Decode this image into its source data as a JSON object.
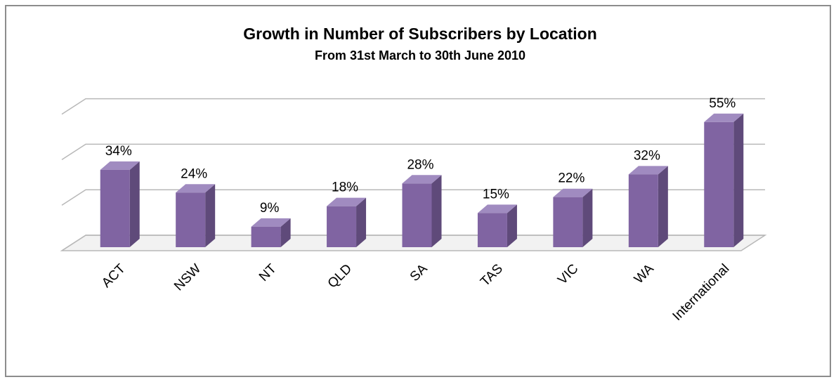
{
  "chart_data": {
    "type": "bar",
    "title": "Growth in Number of Subscribers by Location",
    "subtitle": "From 31st March  to 30th June 2010",
    "categories": [
      "ACT",
      "NSW",
      "NT",
      "QLD",
      "SA",
      "TAS",
      "VIC",
      "WA",
      "International"
    ],
    "values": [
      34,
      24,
      9,
      18,
      28,
      15,
      22,
      32,
      55
    ],
    "value_labels": [
      "34%",
      "24%",
      "9%",
      "18%",
      "28%",
      "15%",
      "22%",
      "32%",
      "55%"
    ],
    "color": "#8064a2",
    "ylim": [
      0,
      60
    ],
    "yticks": [
      0,
      20,
      40,
      60
    ],
    "grid": true
  }
}
